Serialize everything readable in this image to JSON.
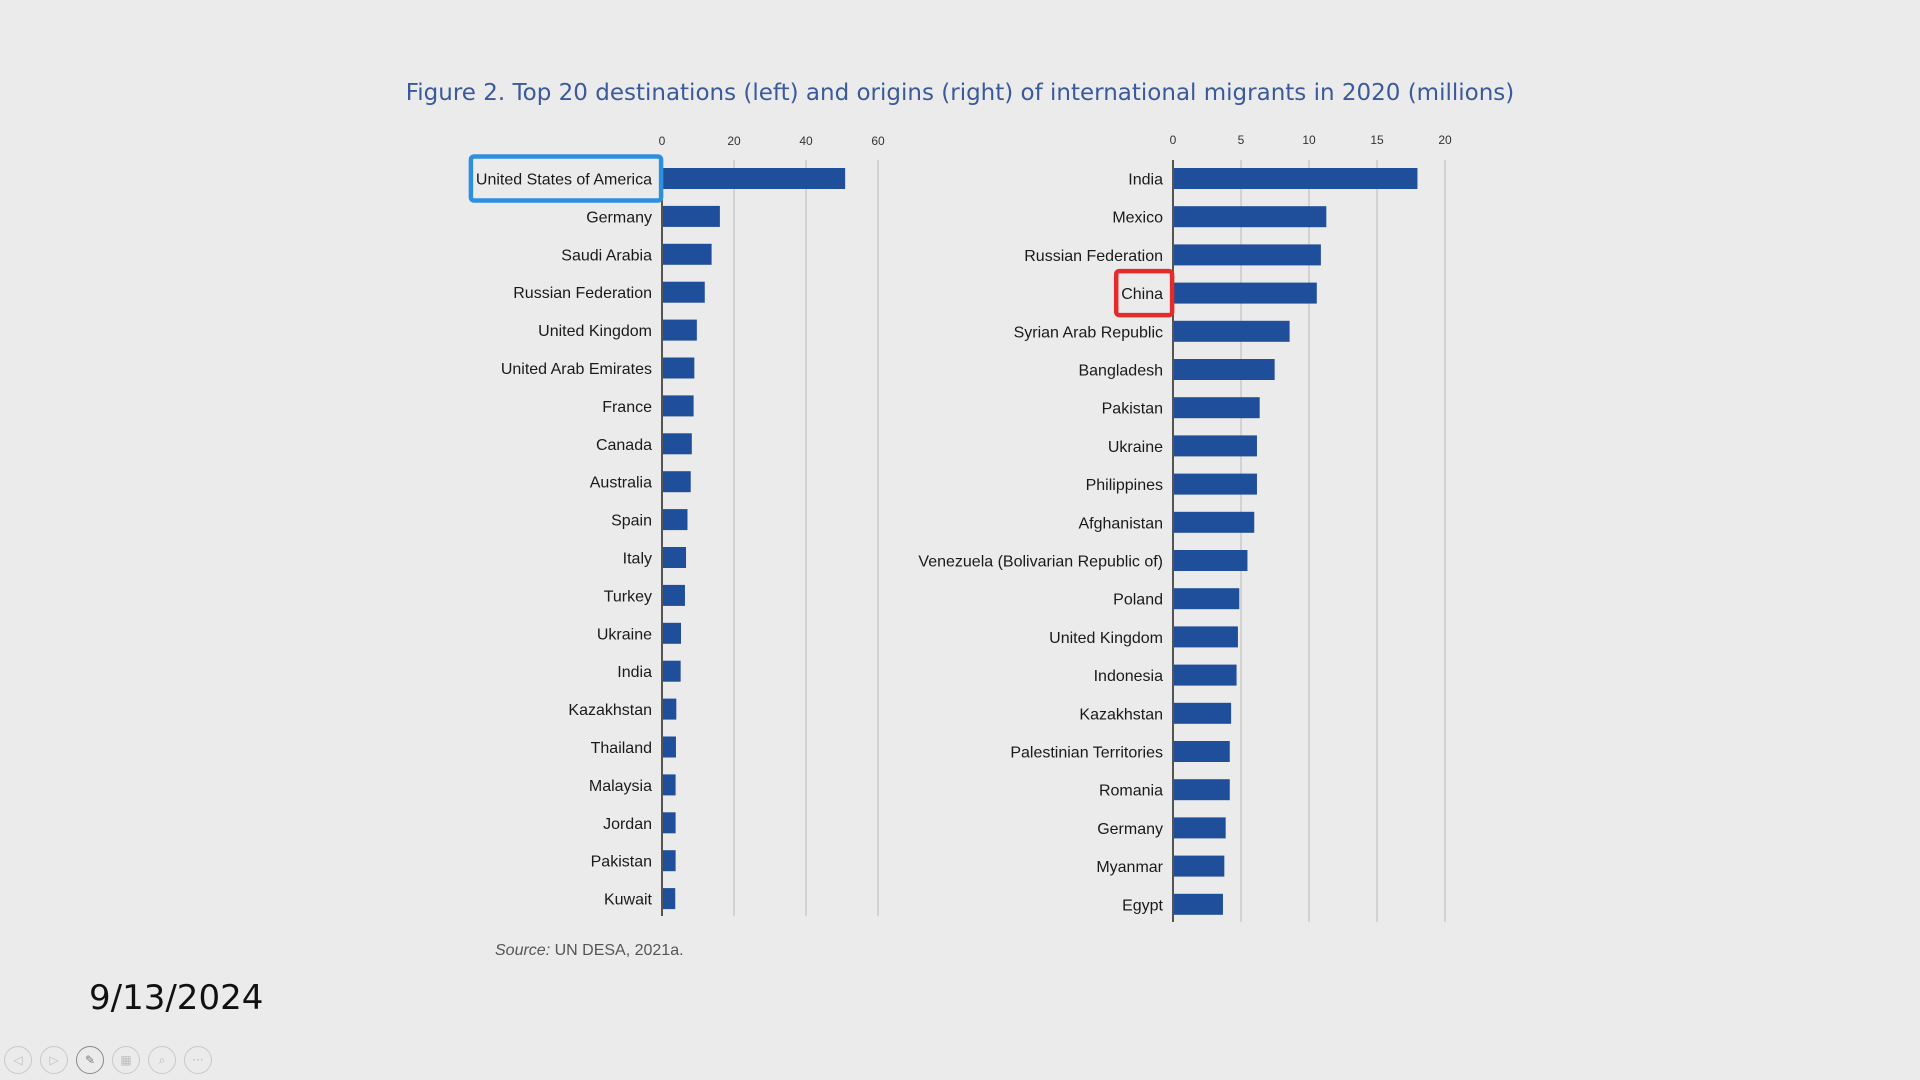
{
  "chart_title": "Figure 2. Top 20 destinations (left) and origins (right) of international migrants in 2020 (millions)",
  "source_label": "Source:",
  "source_value": "UN DESA, 2021a.",
  "slide_date": "9/13/2024",
  "toolbar": [
    {
      "name": "prev-slide-button",
      "icon": "arrow-left-icon",
      "glyph": "◁"
    },
    {
      "name": "next-slide-button",
      "icon": "arrow-right-icon",
      "glyph": "▷"
    },
    {
      "name": "pen-tool-button",
      "icon": "pen-icon",
      "glyph": "✎"
    },
    {
      "name": "slide-sorter-button",
      "icon": "slides-icon",
      "glyph": "▦"
    },
    {
      "name": "zoom-button",
      "icon": "magnifier-icon",
      "glyph": "⌕"
    },
    {
      "name": "more-options-button",
      "icon": "ellipsis-icon",
      "glyph": "···"
    }
  ],
  "colors": {
    "bar": "#1f4e9a",
    "grid": "#c9c9c9",
    "title": "#3a5a9c",
    "highlight_blue": "#2f8fdf",
    "highlight_red": "#e32b2b"
  },
  "chart_data": [
    {
      "type": "bar",
      "orientation": "horizontal",
      "side": "left",
      "xlim": [
        0,
        60
      ],
      "ticks": [
        0,
        20,
        40,
        60
      ],
      "grid": true,
      "highlighted_category": "United States of America",
      "highlight_color": "#2f8fdf",
      "categories": [
        "United States of America",
        "Germany",
        "Saudi Arabia",
        "Russian Federation",
        "United Kingdom",
        "United Arab Emirates",
        "France",
        "Canada",
        "Australia",
        "Spain",
        "Italy",
        "Turkey",
        "Ukraine",
        "India",
        "Kazakhstan",
        "Thailand",
        "Malaysia",
        "Jordan",
        "Pakistan",
        "Kuwait"
      ],
      "values": [
        50.6,
        15.8,
        13.5,
        11.6,
        9.4,
        8.7,
        8.5,
        8.0,
        7.7,
        6.8,
        6.4,
        6.1,
        5.0,
        4.9,
        3.7,
        3.6,
        3.5,
        3.5,
        3.5,
        3.4
      ]
    },
    {
      "type": "bar",
      "orientation": "horizontal",
      "side": "right",
      "xlim": [
        0,
        20
      ],
      "ticks": [
        0,
        5,
        10,
        15,
        20
      ],
      "grid": true,
      "highlighted_category": "China",
      "highlight_color": "#e32b2b",
      "categories": [
        "India",
        "Mexico",
        "Russian Federation",
        "China",
        "Syrian Arab Republic",
        "Bangladesh",
        "Pakistan",
        "Ukraine",
        "Philippines",
        "Afghanistan",
        "Venezuela (Bolivarian Republic of)",
        "Poland",
        "United Kingdom",
        "Indonesia",
        "Kazakhstan",
        "Palestinian Territories",
        "Romania",
        "Germany",
        "Myanmar",
        "Egypt"
      ],
      "values": [
        17.9,
        11.2,
        10.8,
        10.5,
        8.5,
        7.4,
        6.3,
        6.1,
        6.1,
        5.9,
        5.4,
        4.8,
        4.7,
        4.6,
        4.2,
        4.1,
        4.1,
        3.8,
        3.7,
        3.6
      ]
    }
  ]
}
